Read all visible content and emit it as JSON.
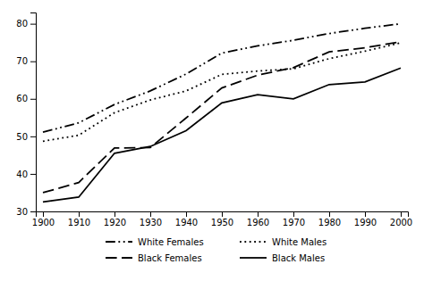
{
  "chart_data": {
    "type": "line",
    "x": [
      1900,
      1910,
      1920,
      1930,
      1940,
      1950,
      1960,
      1970,
      1980,
      1990,
      2000
    ],
    "xlim": [
      1898,
      2002
    ],
    "xticks": [
      1900,
      1910,
      1920,
      1930,
      1940,
      1950,
      1960,
      1970,
      1980,
      1990,
      2000
    ],
    "ylim": [
      30,
      83
    ],
    "yticks": [
      30,
      40,
      50,
      60,
      70,
      80
    ],
    "grid": false,
    "legend": "bottom",
    "series": [
      {
        "name": "White Females",
        "color": "#000000",
        "line_style": "dashdotdot",
        "values": [
          51.1,
          53.6,
          58.5,
          62.1,
          66.6,
          72.2,
          74.1,
          75.6,
          77.4,
          78.8,
          80.0
        ]
      },
      {
        "name": "White Males",
        "color": "#000000",
        "line_style": "dotted",
        "values": [
          48.7,
          50.3,
          56.3,
          59.7,
          62.1,
          66.5,
          67.4,
          68.0,
          70.7,
          72.7,
          74.9
        ]
      },
      {
        "name": "Black Females",
        "color": "#000000",
        "line_style": "dashed",
        "values": [
          35.0,
          37.7,
          46.9,
          47.0,
          54.9,
          62.9,
          66.3,
          68.3,
          72.5,
          73.6,
          75.2
        ]
      },
      {
        "name": "Black Males",
        "color": "#000000",
        "line_style": "solid",
        "values": [
          32.5,
          33.8,
          45.5,
          47.3,
          51.5,
          58.9,
          61.1,
          60.0,
          63.8,
          64.5,
          68.2
        ]
      }
    ]
  }
}
